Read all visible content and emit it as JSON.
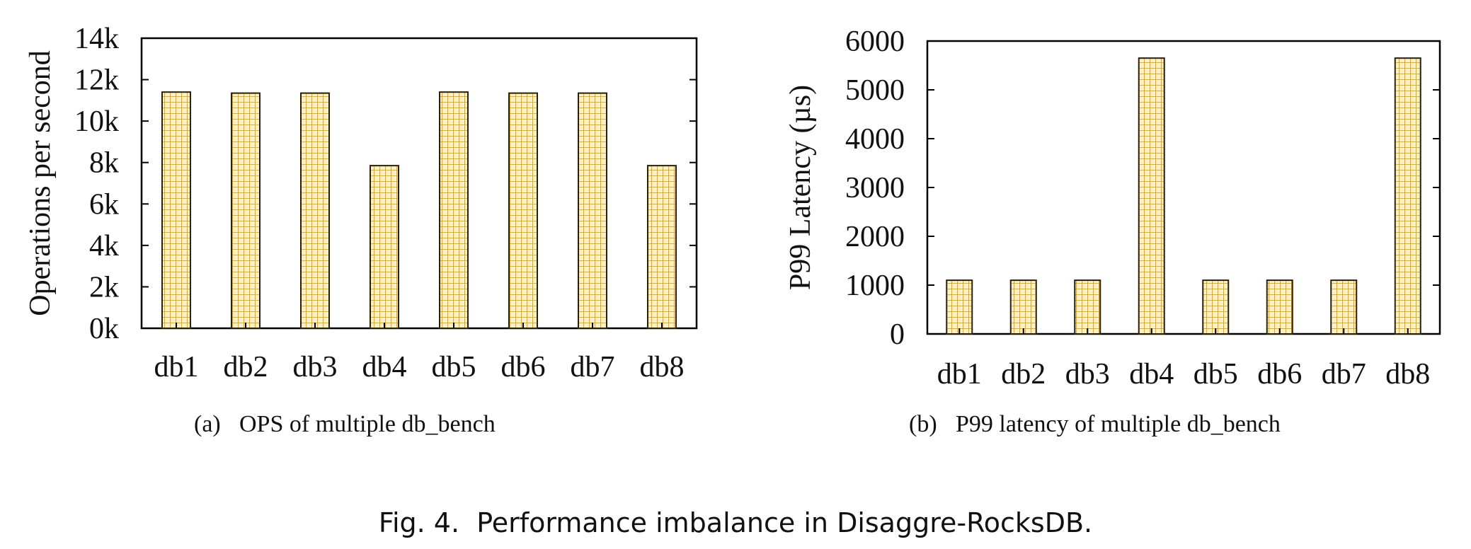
{
  "colors": {
    "bar_fill": "#fdf0c4",
    "bar_grid": "#c49a2c",
    "bar_edge": "#2a2208",
    "axis": "#000000"
  },
  "chart_data": [
    {
      "type": "bar",
      "categories": [
        "db1",
        "db2",
        "db3",
        "db4",
        "db5",
        "db6",
        "db7",
        "db8"
      ],
      "values": [
        11400,
        11350,
        11350,
        7850,
        11400,
        11350,
        11350,
        7850
      ],
      "ylabel": "Operations per second",
      "xlabel": "",
      "ylim": [
        0,
        14000
      ],
      "yticks": [
        "0k",
        "2k",
        "4k",
        "6k",
        "8k",
        "10k",
        "12k",
        "14k"
      ],
      "grid": false,
      "pattern": "square-grid",
      "subcaption_label": "(a)",
      "subcaption_text": "OPS of multiple db_bench"
    },
    {
      "type": "bar",
      "categories": [
        "db1",
        "db2",
        "db3",
        "db4",
        "db5",
        "db6",
        "db7",
        "db8"
      ],
      "values": [
        1100,
        1100,
        1100,
        5650,
        1100,
        1100,
        1100,
        5650
      ],
      "ylabel": "P99 Latency (µs)",
      "xlabel": "",
      "ylim": [
        0,
        6000
      ],
      "yticks": [
        "0",
        "1000",
        "2000",
        "3000",
        "4000",
        "5000",
        "6000"
      ],
      "grid": false,
      "pattern": "square-grid",
      "subcaption_label": "(b)",
      "subcaption_text": "P99 latency of multiple db_bench"
    }
  ],
  "figure_caption": "Fig. 4.  Performance imbalance in Disaggre-RocksDB."
}
